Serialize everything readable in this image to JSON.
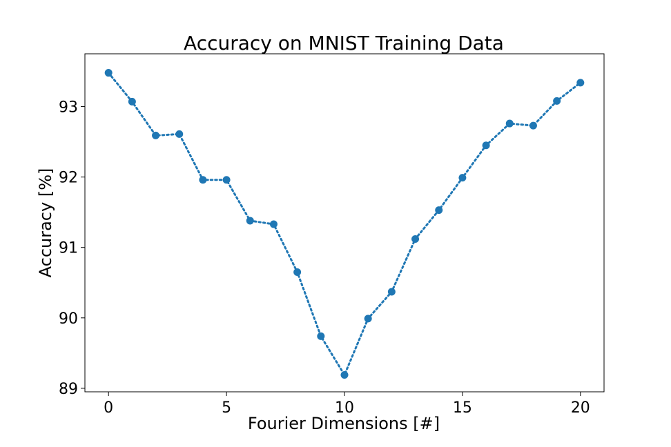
{
  "chart_data": {
    "type": "line",
    "title": "Accuracy on MNIST Training Data",
    "xlabel": "Fourier Dimensions [#]",
    "ylabel": "Accuracy [%]",
    "xlim": [
      -1,
      21
    ],
    "ylim": [
      88.95,
      93.75
    ],
    "xticks": [
      0,
      5,
      10,
      15,
      20
    ],
    "yticks": [
      89,
      90,
      91,
      92,
      93
    ],
    "grid": false,
    "line_style": "dotted",
    "marker": "circle",
    "series_color": "#1f77b4",
    "series": [
      {
        "x": [
          0,
          1,
          2,
          3,
          4,
          5,
          6,
          7,
          8,
          9,
          10,
          11,
          12,
          13,
          14,
          15,
          16,
          17,
          18,
          19,
          20
        ],
        "values": [
          93.48,
          93.07,
          92.59,
          92.61,
          91.96,
          91.96,
          91.38,
          91.33,
          90.65,
          89.74,
          89.19,
          89.99,
          90.37,
          91.12,
          91.53,
          91.99,
          92.45,
          92.76,
          92.73,
          93.08,
          93.34
        ]
      }
    ]
  }
}
